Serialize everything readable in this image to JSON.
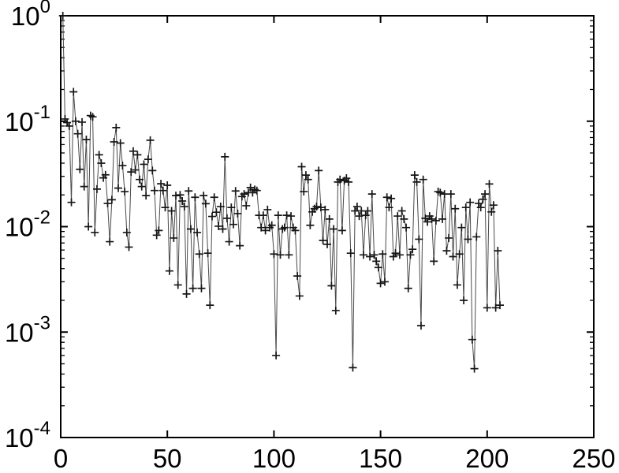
{
  "figure": {
    "background": "#ffffff",
    "axis_color": "#000000",
    "line_color": "#4a4a4a",
    "marker_color": "#161616",
    "tick_label_color": "#000000"
  },
  "chart_data": {
    "type": "line",
    "marker": "+",
    "title": "",
    "xlabel": "",
    "ylabel": "",
    "grid": false,
    "legend": null,
    "y_scale": "log",
    "x_range": [
      0,
      250
    ],
    "y_range_log10": [
      -4,
      0
    ],
    "x_ticks": [
      0,
      50,
      100,
      150,
      200,
      250
    ],
    "x_tick_labels": [
      "0",
      "50",
      "100",
      "150",
      "200",
      "250"
    ],
    "y_tick_base": "10",
    "y_tick_exponents": [
      "0",
      "-1",
      "-2",
      "-3",
      "-4"
    ],
    "y_minor_ticks_per_decade": [
      2,
      3,
      4,
      5,
      6,
      7,
      8,
      9
    ],
    "x": [
      1,
      2,
      3,
      4,
      5,
      6,
      7,
      8,
      9,
      10,
      11,
      12,
      13,
      14,
      15,
      16,
      17,
      18,
      19,
      20,
      21,
      22,
      23,
      24,
      25,
      26,
      27,
      28,
      29,
      30,
      31,
      32,
      33,
      34,
      35,
      36,
      37,
      38,
      39,
      40,
      41,
      42,
      43,
      44,
      45,
      46,
      47,
      48,
      49,
      50,
      51,
      52,
      53,
      54,
      55,
      56,
      57,
      58,
      59,
      60,
      61,
      62,
      63,
      64,
      65,
      66,
      67,
      68,
      69,
      70,
      71,
      72,
      73,
      74,
      75,
      76,
      77,
      78,
      79,
      80,
      81,
      82,
      83,
      84,
      85,
      86,
      87,
      88,
      89,
      90,
      91,
      92,
      93,
      94,
      95,
      96,
      97,
      98,
      99,
      100,
      101,
      102,
      103,
      104,
      105,
      106,
      107,
      108,
      109,
      110,
      111,
      112,
      113,
      114,
      115,
      116,
      117,
      118,
      119,
      120,
      121,
      122,
      123,
      124,
      125,
      126,
      127,
      128,
      129,
      130,
      131,
      132,
      133,
      134,
      135,
      136,
      137,
      138,
      139,
      140,
      141,
      142,
      143,
      144,
      145,
      146,
      147,
      148,
      149,
      150,
      151,
      152,
      153,
      154,
      155,
      156,
      157,
      158,
      159,
      160,
      161,
      162,
      163,
      164,
      165,
      166,
      167,
      168,
      169,
      170,
      171,
      172,
      173,
      174,
      175,
      176,
      177,
      178,
      179,
      180,
      181,
      182,
      183,
      184,
      185,
      186,
      187,
      188,
      189,
      190,
      191,
      192,
      193,
      194,
      195,
      196,
      197,
      198,
      199,
      200,
      201,
      202,
      203,
      204,
      205,
      206
    ],
    "y": [
      1.0,
      0.105,
      0.097,
      0.09,
      0.017,
      0.19,
      0.1,
      0.076,
      0.035,
      0.098,
      0.024,
      0.067,
      0.01,
      0.113,
      0.11,
      0.0088,
      0.0227,
      0.048,
      0.04,
      0.029,
      0.031,
      0.0166,
      0.0072,
      0.018,
      0.0637,
      0.087,
      0.0232,
      0.062,
      0.038,
      0.0215,
      0.0088,
      0.0064,
      0.033,
      0.052,
      0.0345,
      0.048,
      0.028,
      0.024,
      0.039,
      0.0197,
      0.0435,
      0.066,
      0.034,
      0.022,
      0.0083,
      0.0092,
      0.0255,
      0.022,
      0.0152,
      0.0247,
      0.0038,
      0.0141,
      0.0078,
      0.0197,
      0.0028,
      0.02,
      0.0175,
      0.0155,
      0.0023,
      0.0218,
      0.0095,
      0.0026,
      0.019,
      0.0088,
      0.0055,
      0.0026,
      0.0197,
      0.0165,
      0.0056,
      0.0018,
      0.0125,
      0.019,
      0.0137,
      0.0101,
      0.0155,
      0.0095,
      0.046,
      0.012,
      0.0072,
      0.0152,
      0.0105,
      0.0218,
      0.0133,
      0.0066,
      0.0193,
      0.0204,
      0.0158,
      0.021,
      0.0235,
      0.021,
      0.0225,
      0.022,
      0.0128,
      0.0098,
      0.0128,
      0.0092,
      0.0145,
      0.0098,
      0.0103,
      0.0055,
      0.0006,
      0.0128,
      0.0054,
      0.0095,
      0.0098,
      0.0128,
      0.0054,
      0.0126,
      0.0098,
      0.0092,
      0.0034,
      0.0022,
      0.037,
      0.0215,
      0.0308,
      0.028,
      0.0103,
      0.0138,
      0.0148,
      0.0155,
      0.034,
      0.0152,
      0.0074,
      0.0145,
      0.0068,
      0.0118,
      0.00275,
      0.0095,
      0.0016,
      0.0265,
      0.028,
      0.0092,
      0.0273,
      0.0288,
      0.0265,
      0.0056,
      0.00046,
      0.0141,
      0.0155,
      0.0126,
      0.0141,
      0.0054,
      0.0128,
      0.0141,
      0.0052,
      0.0204,
      0.0054,
      0.0047,
      0.0041,
      0.0029,
      0.0055,
      0.003,
      0.019,
      0.0152,
      0.0185,
      0.0052,
      0.0056,
      0.0126,
      0.0054,
      0.0141,
      0.0118,
      0.0098,
      0.0026,
      0.0054,
      0.0061,
      0.0308,
      0.0265,
      0.0076,
      0.00115,
      0.028,
      0.012,
      0.0111,
      0.0126,
      0.0118,
      0.0047,
      0.0114,
      0.0215,
      0.021,
      0.0118,
      0.0204,
      0.0059,
      0.0078,
      0.0204,
      0.0052,
      0.0148,
      0.0028,
      0.0055,
      0.0098,
      0.002,
      0.0152,
      0.0076,
      0.017,
      0.00085,
      0.00045,
      0.008,
      0.0166,
      0.0152,
      0.0182,
      0.0204,
      0.0017,
      0.0254,
      0.0138,
      0.016,
      0.0017,
      0.0059,
      0.0018
    ]
  }
}
